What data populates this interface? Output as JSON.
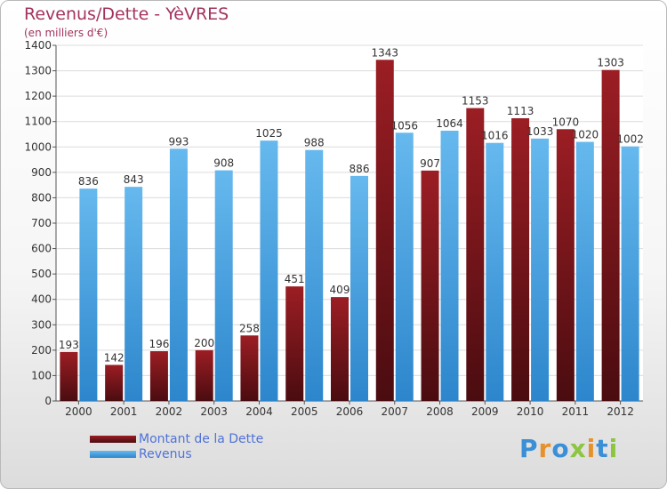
{
  "header": {
    "title": "Revenus/Dette - YèVRES",
    "subtitle": "(en milliers d'€)"
  },
  "legend": {
    "dette_label": "Montant de la Dette",
    "revenus_label": "Revenus"
  },
  "logo": {
    "text": "Proxiti"
  },
  "colors": {
    "dette_top": "#9b1e24",
    "dette_bottom": "#4a0c10",
    "revenus_top": "#66b9ee",
    "revenus_bottom": "#2d86cc",
    "title": "#a3335d",
    "legend_text": "#4f72d8"
  },
  "chart_data": {
    "type": "bar",
    "title": "Revenus/Dette - YèVRES",
    "subtitle": "(en milliers d'€)",
    "categories": [
      "2000",
      "2001",
      "2002",
      "2003",
      "2004",
      "2005",
      "2006",
      "2007",
      "2008",
      "2009",
      "2010",
      "2011",
      "2012"
    ],
    "series": [
      {
        "name": "Montant de la Dette",
        "values": [
          193,
          142,
          196,
          200,
          258,
          451,
          409,
          1343,
          907,
          1153,
          1113,
          1070,
          1303
        ]
      },
      {
        "name": "Revenus",
        "values": [
          836,
          843,
          993,
          908,
          1025,
          988,
          886,
          1056,
          1064,
          1016,
          1033,
          1020,
          1002
        ]
      }
    ],
    "ylim": [
      0,
      1400
    ],
    "yticks": [
      0,
      100,
      200,
      300,
      400,
      500,
      600,
      700,
      800,
      900,
      1000,
      1100,
      1200,
      1300,
      1400
    ],
    "grid": true,
    "legend_position": "bottom-left"
  }
}
